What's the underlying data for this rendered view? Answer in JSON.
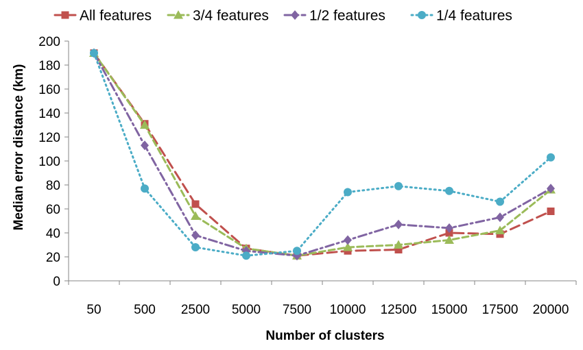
{
  "chart_data": {
    "type": "line",
    "title": "",
    "xlabel": "Number of clusters",
    "ylabel": "Median error distance (km)",
    "categories": [
      "50",
      "500",
      "2500",
      "5000",
      "7500",
      "10000",
      "12500",
      "15000",
      "17500",
      "20000"
    ],
    "ylim": [
      0,
      200
    ],
    "yticks": [
      0,
      20,
      40,
      60,
      80,
      100,
      120,
      140,
      160,
      180,
      200
    ],
    "grid": false,
    "legend_position": "top",
    "series": [
      {
        "name": "All features",
        "color": "#C0504D",
        "marker": "square",
        "dash": "long-dash",
        "values": [
          190,
          131,
          64,
          27,
          21,
          25,
          26,
          40,
          39,
          58
        ]
      },
      {
        "name": "3/4 features",
        "color": "#9BBB59",
        "marker": "triangle",
        "dash": "dash",
        "values": [
          190,
          130,
          54,
          27,
          21,
          28,
          30,
          34,
          42,
          76
        ]
      },
      {
        "name": "1/2 features",
        "color": "#8064A2",
        "marker": "diamond",
        "dash": "dash-dot",
        "values": [
          190,
          113,
          38,
          25,
          21,
          34,
          47,
          44,
          53,
          77
        ]
      },
      {
        "name": "1/4 features",
        "color": "#4BACC6",
        "marker": "circle",
        "dash": "dot",
        "values": [
          190,
          77,
          28,
          21,
          25,
          74,
          79,
          75,
          66,
          103
        ]
      }
    ]
  }
}
